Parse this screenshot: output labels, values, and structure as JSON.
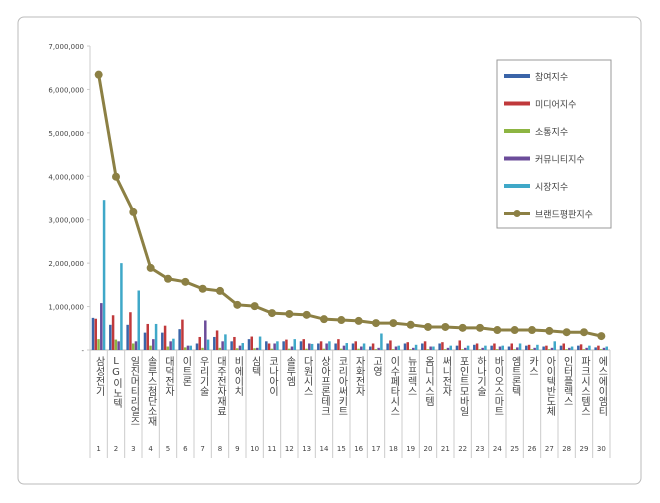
{
  "chart_data": {
    "type": "bar-line",
    "categories": [
      "삼성전기",
      "LG이노텍",
      "일진머티리얼즈",
      "솔루스첨단소재",
      "대덕전자",
      "이트론",
      "우리기술",
      "대주전자재료",
      "비에이치",
      "심텍",
      "코나아이",
      "솔루엠",
      "다원시스",
      "상아프론테크",
      "코리아써키트",
      "자화전자",
      "고영",
      "이수페타시스",
      "뉴프렉스",
      "옴니시스템",
      "써니전자",
      "포인트모바일",
      "하나기술",
      "바이오스마트",
      "엠트론텍",
      "카스",
      "아이텍반도체",
      "인터플렉스",
      "파크시스템스",
      "에스에이엠티"
    ],
    "category_numbers": [
      1,
      2,
      3,
      4,
      5,
      6,
      7,
      8,
      9,
      10,
      11,
      12,
      13,
      14,
      15,
      16,
      17,
      18,
      19,
      20,
      21,
      22,
      23,
      24,
      25,
      26,
      27,
      28,
      29,
      30
    ],
    "series": [
      {
        "name": "참여지수",
        "type": "bar",
        "color": "#3a64a8",
        "values": [
          740000,
          580000,
          580000,
          400000,
          400000,
          480000,
          150000,
          300000,
          200000,
          250000,
          200000,
          200000,
          200000,
          150000,
          150000,
          150000,
          80000,
          150000,
          150000,
          150000,
          150000,
          100000,
          120000,
          100000,
          80000,
          100000,
          80000,
          100000,
          100000,
          60000
        ]
      },
      {
        "name": "미디어지수",
        "type": "bar",
        "color": "#c0393b",
        "values": [
          720000,
          800000,
          870000,
          600000,
          560000,
          700000,
          300000,
          450000,
          300000,
          310000,
          150000,
          240000,
          250000,
          200000,
          250000,
          200000,
          150000,
          220000,
          180000,
          200000,
          180000,
          220000,
          150000,
          150000,
          150000,
          120000,
          100000,
          150000,
          130000,
          100000
        ]
      },
      {
        "name": "소통지수",
        "type": "bar",
        "color": "#8db542",
        "values": [
          250000,
          240000,
          150000,
          100000,
          80000,
          60000,
          50000,
          50000,
          40000,
          40000,
          30000,
          30000,
          30000,
          30000,
          30000,
          30000,
          20000,
          20000,
          20000,
          20000,
          20000,
          20000,
          20000,
          20000,
          20000,
          20000,
          20000,
          20000,
          20000,
          20000
        ]
      },
      {
        "name": "커뮤니티지수",
        "type": "bar",
        "color": "#6b4c9a",
        "values": [
          1080000,
          200000,
          200000,
          250000,
          200000,
          100000,
          680000,
          200000,
          100000,
          50000,
          150000,
          80000,
          150000,
          150000,
          100000,
          80000,
          50000,
          80000,
          50000,
          80000,
          50000,
          50000,
          50000,
          80000,
          60000,
          50000,
          50000,
          50000,
          50000,
          50000
        ]
      },
      {
        "name": "시장지수",
        "type": "bar",
        "color": "#3fa8c8",
        "values": [
          3450000,
          2000000,
          1370000,
          600000,
          260000,
          100000,
          240000,
          360000,
          160000,
          310000,
          200000,
          250000,
          140000,
          200000,
          160000,
          150000,
          380000,
          100000,
          120000,
          80000,
          100000,
          100000,
          100000,
          100000,
          150000,
          120000,
          200000,
          80000,
          100000,
          80000
        ]
      },
      {
        "name": "브랜드평판지수",
        "type": "line",
        "color": "#8c8044",
        "values": [
          6340000,
          3990000,
          3180000,
          1890000,
          1640000,
          1570000,
          1410000,
          1360000,
          1040000,
          1010000,
          850000,
          830000,
          810000,
          710000,
          690000,
          670000,
          620000,
          620000,
          580000,
          530000,
          530000,
          510000,
          510000,
          460000,
          460000,
          460000,
          440000,
          410000,
          410000,
          320000
        ]
      }
    ],
    "ylim": [
      0,
      7000000
    ],
    "yticks": [
      {
        "value": 0,
        "label": "-"
      },
      {
        "value": 1000000,
        "label": "1,000,000"
      },
      {
        "value": 2000000,
        "label": "2,000,000"
      },
      {
        "value": 3000000,
        "label": "3,000,000"
      },
      {
        "value": 4000000,
        "label": "4,000,000"
      },
      {
        "value": 5000000,
        "label": "5,000,000"
      },
      {
        "value": 6000000,
        "label": "6,000,000"
      },
      {
        "value": 7000000,
        "label": "7,000,000"
      }
    ],
    "grid": false,
    "legend": "upper right"
  }
}
